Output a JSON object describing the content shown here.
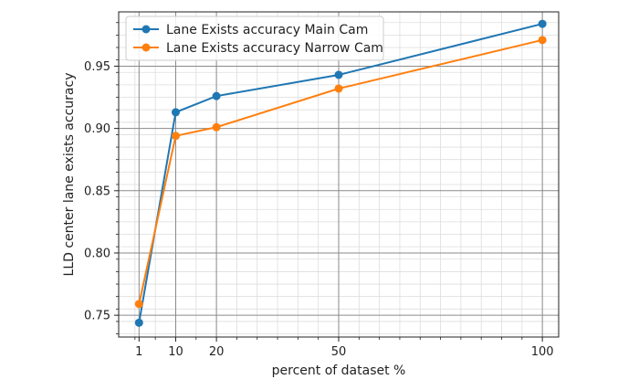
{
  "chart_data": {
    "type": "line",
    "title": "",
    "xlabel": "percent of dataset %",
    "ylabel": "LLD center lane exists accuracy",
    "x_ticks": [
      1,
      10,
      20,
      50,
      100
    ],
    "y_ticks": [
      0.75,
      0.8,
      0.85,
      0.9,
      0.95
    ],
    "y_tick_labels": [
      "0.75",
      "0.80",
      "0.85",
      "0.90",
      "0.95"
    ],
    "xlim": [
      -4,
      104
    ],
    "ylim": [
      0.7325,
      0.9936
    ],
    "grid": "major and minor",
    "legend_position": "top-left",
    "series": [
      {
        "name": "Lane Exists accuracy Main Cam",
        "color": "#1f77b4",
        "x": [
          1,
          10,
          20,
          50,
          100
        ],
        "y": [
          0.744,
          0.913,
          0.926,
          0.943,
          0.984
        ]
      },
      {
        "name": "Lane Exists accuracy Narrow Cam",
        "color": "#ff7f0e",
        "x": [
          1,
          10,
          20,
          50,
          100
        ],
        "y": [
          0.759,
          0.894,
          0.901,
          0.932,
          0.971
        ]
      }
    ]
  }
}
